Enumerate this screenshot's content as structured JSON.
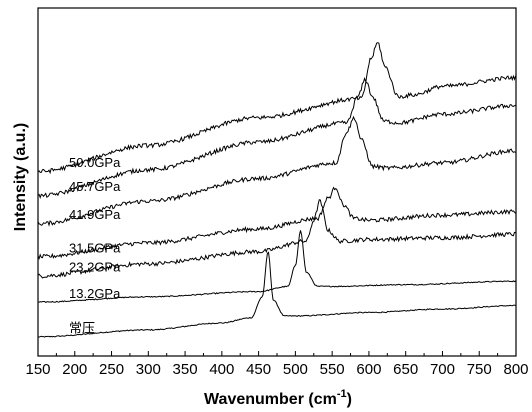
{
  "chart_data": {
    "type": "line",
    "title": "",
    "xlabel": "Wavenumber (cm",
    "xlabel_superscript": "-1",
    "xlabel_suffix": ")",
    "ylabel": "Intensity (a.u.)",
    "xlim": [
      150,
      800
    ],
    "ylim": [
      0,
      10
    ],
    "y_ticks_labeled": false,
    "grid": false,
    "x_ticks": [
      150,
      200,
      250,
      300,
      350,
      400,
      450,
      500,
      550,
      600,
      650,
      700,
      750,
      800
    ],
    "series": [
      {
        "name": "常压",
        "label_at_x": 165,
        "line_color": "#000000",
        "x": [
          150,
          300,
          400,
          440,
          455,
          463,
          470,
          485,
          500,
          600,
          700,
          800
        ],
        "y": [
          0.55,
          0.75,
          0.95,
          1.1,
          1.7,
          3.0,
          1.6,
          1.15,
          1.15,
          1.25,
          1.35,
          1.45
        ]
      },
      {
        "name": "13.2GPa",
        "label_at_x": 165,
        "line_color": "#000000",
        "x": [
          150,
          300,
          450,
          490,
          500,
          507,
          515,
          530,
          550,
          650,
          800
        ],
        "y": [
          1.55,
          1.7,
          1.85,
          2.0,
          2.6,
          3.6,
          2.4,
          2.0,
          2.0,
          2.05,
          2.15
        ]
      },
      {
        "name": "23.2GPa",
        "label_at_x": 165,
        "line_color": "#000000",
        "x": [
          150,
          300,
          450,
          515,
          525,
          533,
          545,
          560,
          600,
          700,
          800
        ],
        "y": [
          2.3,
          2.65,
          3.0,
          3.3,
          3.9,
          4.45,
          3.6,
          3.3,
          3.35,
          3.4,
          3.5
        ]
      },
      {
        "name": "31.5GPa",
        "label_at_x": 165,
        "line_color": "#000000",
        "x": [
          150,
          300,
          450,
          530,
          545,
          555,
          565,
          580,
          600,
          700,
          800
        ],
        "y": [
          2.85,
          3.25,
          3.65,
          3.95,
          4.55,
          4.85,
          4.35,
          3.95,
          3.9,
          4.05,
          4.15
        ]
      },
      {
        "name": "41.9GPa",
        "label_at_x": 165,
        "line_color": "#000000",
        "x": [
          150,
          300,
          450,
          555,
          570,
          580,
          590,
          605,
          625,
          700,
          800
        ],
        "y": [
          3.8,
          4.45,
          5.1,
          5.55,
          6.45,
          6.85,
          6.2,
          5.45,
          5.4,
          5.55,
          5.9
        ]
      },
      {
        "name": "45.7GPa",
        "label_at_x": 165,
        "line_color": "#000000",
        "x": [
          150,
          300,
          450,
          570,
          585,
          595,
          605,
          620,
          640,
          700,
          800
        ],
        "y": [
          4.6,
          5.35,
          6.15,
          6.7,
          7.45,
          7.95,
          7.45,
          6.75,
          6.7,
          6.95,
          7.2
        ]
      },
      {
        "name": "50.0GPa",
        "label_at_x": 165,
        "line_color": "#000000",
        "x": [
          150,
          300,
          450,
          590,
          603,
          612,
          622,
          640,
          660,
          700,
          800
        ],
        "y": [
          5.3,
          6.05,
          6.85,
          7.4,
          8.55,
          9.0,
          8.3,
          7.45,
          7.5,
          7.75,
          8.0
        ]
      }
    ]
  }
}
